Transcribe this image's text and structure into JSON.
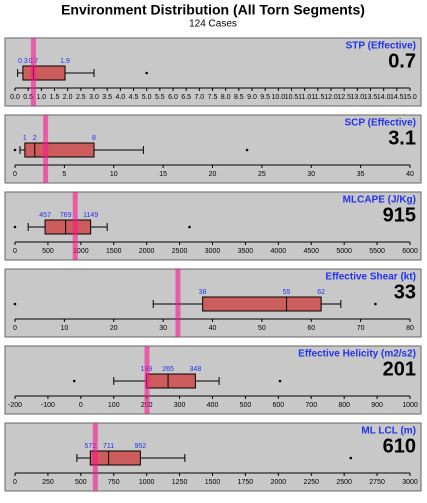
{
  "title": "Environment Distribution (All Torn Segments)",
  "subtitle": "124 Cases",
  "chart_data": [
    {
      "type": "box",
      "title": "STP (Effective)",
      "value": 0.7,
      "whisker_low": 0.1,
      "q1": 0.3,
      "median": 0.7,
      "q3": 1.9,
      "whisker_high": 3.0,
      "outliers": [
        5.0
      ],
      "color": "#cd5c5c",
      "value_color": "#ff1493",
      "xlim": [
        0,
        15
      ],
      "xticks": [
        {
          "value": 0,
          "label": "0.0"
        },
        {
          "value": 0.5,
          "label": "0.5"
        },
        {
          "value": 1,
          "label": "1.0"
        },
        {
          "value": 1.5,
          "label": "1.5"
        },
        {
          "value": 2,
          "label": "2.0"
        },
        {
          "value": 2.5,
          "label": "2.5"
        },
        {
          "value": 3,
          "label": "3.0"
        },
        {
          "value": 3.5,
          "label": "3.5"
        },
        {
          "value": 4,
          "label": "4.0"
        },
        {
          "value": 4.5,
          "label": "4.5"
        },
        {
          "value": 5,
          "label": "5.0"
        },
        {
          "value": 5.5,
          "label": "5.5"
        },
        {
          "value": 6,
          "label": "6.0"
        },
        {
          "value": 6.5,
          "label": "6.5"
        },
        {
          "value": 7,
          "label": "7.0"
        },
        {
          "value": 7.5,
          "label": "7.5"
        },
        {
          "value": 8,
          "label": "8.0"
        },
        {
          "value": 8.5,
          "label": "8.5"
        },
        {
          "value": 9,
          "label": "9.0"
        },
        {
          "value": 9.5,
          "label": "9.5"
        },
        {
          "value": 10,
          "label": "10.0"
        },
        {
          "value": 10.5,
          "label": "10.5"
        },
        {
          "value": 11,
          "label": "11.0"
        },
        {
          "value": 11.5,
          "label": "11.5"
        },
        {
          "value": 12,
          "label": "12.0"
        },
        {
          "value": 12.5,
          "label": "12.5"
        },
        {
          "value": 13,
          "label": "13.0"
        },
        {
          "value": 13.5,
          "label": "13.5"
        },
        {
          "value": 14,
          "label": "14.0"
        },
        {
          "value": 14.5,
          "label": "14.5"
        },
        {
          "value": 15,
          "label": "15.0"
        }
      ]
    },
    {
      "type": "box",
      "title": "SCP (Effective)",
      "value": 3.1,
      "whisker_low": 0.5,
      "q1": 1,
      "median": 2,
      "q3": 8,
      "whisker_high": 13,
      "outliers": [
        0,
        23.5
      ],
      "color": "#cd5c5c",
      "value_color": "#ff1493",
      "xlim": [
        0,
        40
      ],
      "xticks": [
        0,
        5,
        10,
        15,
        20,
        25,
        30,
        35,
        40
      ]
    },
    {
      "type": "box",
      "title": "MLCAPE (J/Kg)",
      "value": 915,
      "whisker_low": 200,
      "q1": 457,
      "median": 769,
      "q3": 1149,
      "whisker_high": 1400,
      "outliers": [
        0,
        2650
      ],
      "color": "#cd5c5c",
      "value_color": "#ff1493",
      "xlim": [
        0,
        6000
      ],
      "xticks": [
        0,
        500,
        1000,
        1500,
        2000,
        2500,
        3000,
        3500,
        4000,
        4500,
        5000,
        5500,
        6000
      ]
    },
    {
      "type": "box",
      "title": "Effective Shear (kt)",
      "value": 33,
      "whisker_low": 28,
      "q1": 38,
      "median": 55,
      "q3": 62,
      "whisker_high": 66,
      "outliers": [
        0,
        73
      ],
      "color": "#cd5c5c",
      "value_color": "#ff1493",
      "xlim": [
        0,
        80
      ],
      "xticks": [
        0,
        10,
        20,
        30,
        40,
        50,
        60,
        70,
        80
      ]
    },
    {
      "type": "box",
      "title": "Effective Helicity (m2/s2)",
      "value": 201,
      "whisker_low": 100,
      "q1": 199,
      "median": 265,
      "q3": 348,
      "whisker_high": 420,
      "outliers": [
        -20,
        605
      ],
      "color": "#cd5c5c",
      "value_color": "#ff1493",
      "xlim": [
        -200,
        1000
      ],
      "xticks": [
        -200,
        -100,
        0,
        100,
        200,
        300,
        400,
        500,
        600,
        700,
        800,
        900,
        1000
      ]
    },
    {
      "type": "box",
      "title": "ML LCL (m)",
      "value": 610,
      "whisker_low": 470,
      "q1": 572,
      "median": 711,
      "q3": 952,
      "whisker_high": 1290,
      "outliers": [
        2550
      ],
      "color": "#cd5c5c",
      "value_color": "#ff1493",
      "xlim": [
        0,
        3000
      ],
      "xticks": [
        0,
        250,
        500,
        750,
        1000,
        1250,
        1500,
        1750,
        2000,
        2250,
        2500,
        2750,
        3000
      ]
    }
  ]
}
